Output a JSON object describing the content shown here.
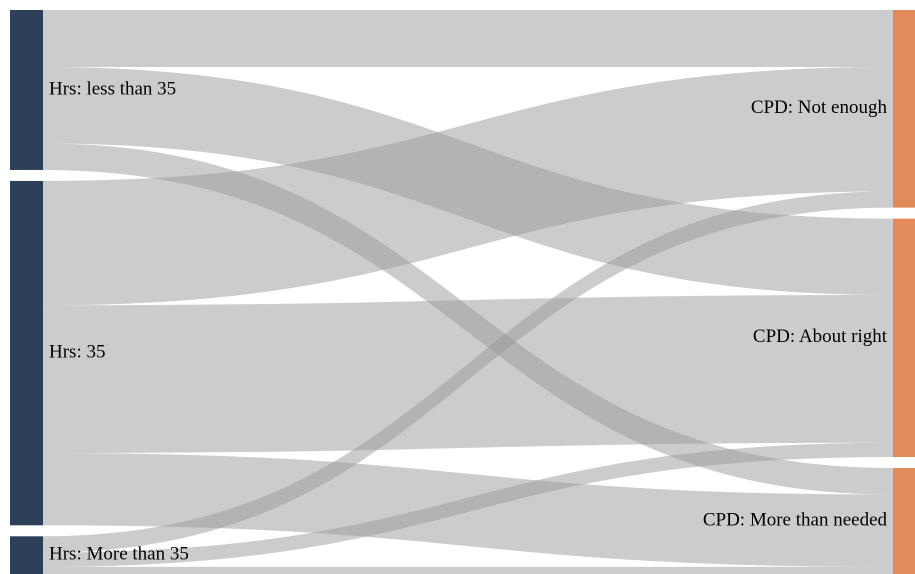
{
  "chart_data": {
    "type": "sankey",
    "title": "",
    "colors": {
      "source_node": "#2d4059",
      "target_node": "#e38a5b",
      "link": "#9a9a9a"
    },
    "sources": [
      {
        "id": "lt35",
        "label": "Hrs: less than 35"
      },
      {
        "id": "eq35",
        "label": "Hrs: 35"
      },
      {
        "id": "gt35",
        "label": "Hrs: More than 35"
      }
    ],
    "targets": [
      {
        "id": "not",
        "label": "CPD: Not enough"
      },
      {
        "id": "right",
        "label": "CPD: About right"
      },
      {
        "id": "more",
        "label": "CPD: More than needed"
      }
    ],
    "links": [
      {
        "source": "lt35",
        "target": "not",
        "value": 56
      },
      {
        "source": "lt35",
        "target": "right",
        "value": 75
      },
      {
        "source": "lt35",
        "target": "more",
        "value": 26
      },
      {
        "source": "eq35",
        "target": "not",
        "value": 122
      },
      {
        "source": "eq35",
        "target": "right",
        "value": 145
      },
      {
        "source": "eq35",
        "target": "more",
        "value": 71
      },
      {
        "source": "gt35",
        "target": "not",
        "value": 16
      },
      {
        "source": "gt35",
        "target": "right",
        "value": 14
      },
      {
        "source": "gt35",
        "target": "more",
        "value": 7
      }
    ]
  }
}
